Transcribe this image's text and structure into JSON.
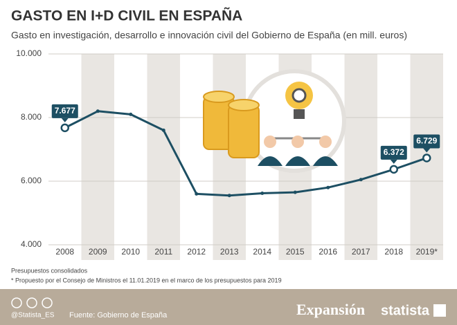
{
  "chart_data": {
    "type": "line",
    "title": "GASTO EN I+D CIVIL EN ESPAÑA",
    "subtitle": "Gasto en investigación, desarrollo e innovación civil del Gobierno de España (en mill. euros)",
    "categories": [
      "2008",
      "2009",
      "2010",
      "2011",
      "2012",
      "2013",
      "2014",
      "2015",
      "2016",
      "2017",
      "2018",
      "2019*"
    ],
    "series": [
      {
        "name": "Gasto en I+D civil",
        "color": "#1d4f63",
        "values": [
          7677,
          8200,
          8100,
          7600,
          5600,
          5550,
          5620,
          5650,
          5800,
          6050,
          6372,
          6729
        ],
        "value_labels": [
          "7.677",
          null,
          null,
          null,
          null,
          null,
          null,
          null,
          null,
          null,
          "6.372",
          "6.729"
        ]
      }
    ],
    "ylim": [
      4000,
      10000
    ],
    "yticks": [
      {
        "value": 4000,
        "label": "4.000"
      },
      {
        "value": 6000,
        "label": "6.000"
      },
      {
        "value": 8000,
        "label": "8.000"
      },
      {
        "value": 10000,
        "label": "10.000"
      }
    ],
    "grid": true,
    "notes": [
      "Presupuestos consolidados",
      "* Propuesto por el Consejo de Ministros el 11.01.2019 en el marco de los presupuestos para 2019"
    ],
    "footer": {
      "handle": "@Statista_ES",
      "source": "Fuente: Gobierno de España",
      "brand": "Expansión",
      "brand2": "statista"
    }
  }
}
